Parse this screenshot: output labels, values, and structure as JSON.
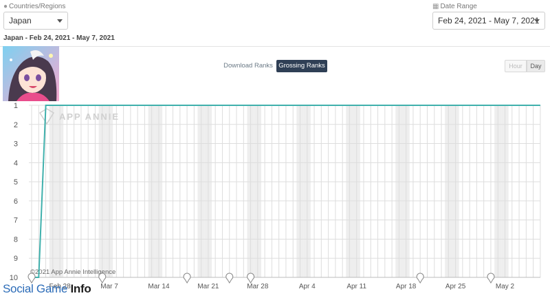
{
  "filters": {
    "countries_label": "Countries/Regions",
    "country_value": "Japan",
    "date_label": "Date Range",
    "date_value": "Feb 24, 2021 - May 7, 2021"
  },
  "subtitle": "Japan - Feb 24, 2021 - May 7, 2021",
  "rank_toggle": {
    "download_label": "Download Ranks",
    "grossing_label": "Grossing Ranks"
  },
  "granularity": {
    "hour_label": "Hour",
    "day_label": "Day"
  },
  "watermark": "APP ANNIE",
  "copyright": "©2021 App Annie Intelligence",
  "footer_brand": {
    "part1": "Social Game",
    "part2": "Info"
  },
  "colors": {
    "line": "#3fb0ac",
    "active_toggle": "#2f3f55",
    "grid": "#dddddd",
    "weekend": "#eeeeee"
  },
  "chart_data": {
    "type": "line",
    "title": "",
    "xlabel": "",
    "ylabel": "",
    "x_start": "2021-02-24",
    "x_end": "2021-05-07",
    "x_tick_labels": [
      "Feb 28",
      "Mar 7",
      "Mar 14",
      "Mar 21",
      "Mar 28",
      "Apr 4",
      "Apr 11",
      "Apr 18",
      "Apr 25",
      "May 2"
    ],
    "y_tick_labels": [
      "1",
      "2",
      "3",
      "4",
      "5",
      "6",
      "7",
      "8",
      "9",
      "10"
    ],
    "ylim": [
      10,
      1
    ],
    "y_inverted": true,
    "grid": true,
    "series": [
      {
        "x": [
          "2021-02-24",
          "2021-02-25",
          "2021-02-26",
          "2021-03-07",
          "2021-03-21",
          "2021-04-04",
          "2021-04-18",
          "2021-05-02",
          "2021-05-07"
        ],
        "y": [
          10,
          10,
          1,
          1,
          1,
          1,
          1,
          1,
          1
        ]
      }
    ],
    "event_markers": [
      "2021-02-24",
      "2021-03-06",
      "2021-03-18",
      "2021-03-24",
      "2021-03-27",
      "2021-04-20",
      "2021-04-30"
    ]
  }
}
